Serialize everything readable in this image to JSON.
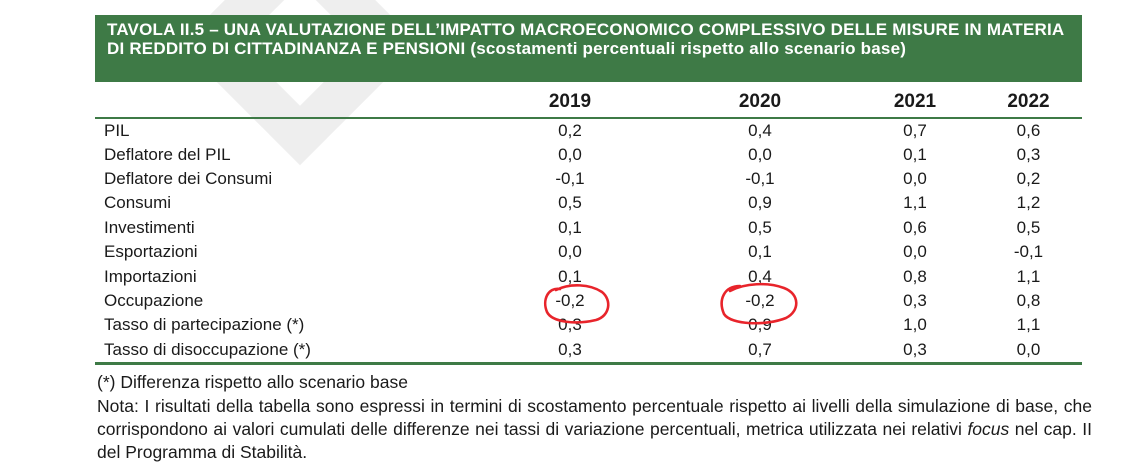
{
  "title": "TAVOLA II.5 – UNA VALUTAZIONE DELL’IMPATTO MACROECONOMICO COMPLESSIVO DELLE MISURE IN MATERIA DI REDDITO DI CITTADINANZA E PENSIONI (scostamenti percentuali rispetto allo scenario base)",
  "table": {
    "columns": [
      "2019",
      "2020",
      "2021",
      "2022"
    ],
    "rows": [
      {
        "label": "PIL",
        "values": [
          "0,2",
          "0,4",
          "0,7",
          "0,6"
        ]
      },
      {
        "label": "Deflatore del PIL",
        "values": [
          "0,0",
          "0,0",
          "0,1",
          "0,3"
        ]
      },
      {
        "label": "Deflatore dei Consumi",
        "values": [
          "-0,1",
          "-0,1",
          "0,0",
          "0,2"
        ]
      },
      {
        "label": "Consumi",
        "values": [
          "0,5",
          "0,9",
          "1,1",
          "1,2"
        ]
      },
      {
        "label": "Investimenti",
        "values": [
          "0,1",
          "0,5",
          "0,6",
          "0,5"
        ]
      },
      {
        "label": "Esportazioni",
        "values": [
          "0,0",
          "0,1",
          "0,0",
          "-0,1"
        ]
      },
      {
        "label": "Importazioni",
        "values": [
          "0,1",
          "0,4",
          "0,8",
          "1,1"
        ]
      },
      {
        "label": "Occupazione",
        "values": [
          "-0,2",
          "-0,2",
          "0,3",
          "0,8"
        ]
      },
      {
        "label": "Tasso di partecipazione (*)",
        "values": [
          "0,3",
          "0,9",
          "1,0",
          "1,1"
        ]
      },
      {
        "label": "Tasso di disoccupazione (*)",
        "values": [
          "0,3",
          "0,7",
          "0,3",
          "0,0"
        ]
      }
    ]
  },
  "footnote": "(*) Differenza rispetto allo scenario base",
  "note": {
    "before_italic": "Nota: I risultati della tabella sono espressi in termini di scostamento percentuale rispetto ai livelli della simulazione di base, che corrispondono ai valori cumulati delle differenze nei tassi di variazione percentuali, metrica utilizzata nei relativi ",
    "italic": "focus",
    "after_italic": " nel cap. II del Programma di Stabilità."
  },
  "annotation": {
    "color": "#e8242b",
    "circled": [
      "Occupazione 2019",
      "Occupazione 2020"
    ]
  }
}
